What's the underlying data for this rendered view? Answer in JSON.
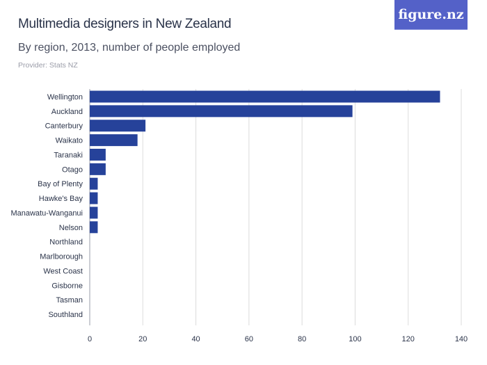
{
  "header": {
    "title": "Multimedia designers in New Zealand",
    "subtitle": "By region, 2013, number of people employed",
    "provider": "Provider: Stats NZ",
    "logo": "figure.nz"
  },
  "colors": {
    "bar": "#26429a",
    "logo_bg": "#5461c8",
    "grid": "#dcdcdc"
  },
  "chart_data": {
    "type": "bar",
    "orientation": "horizontal",
    "categories": [
      "Wellington",
      "Auckland",
      "Canterbury",
      "Waikato",
      "Taranaki",
      "Otago",
      "Bay of Plenty",
      "Hawke's Bay",
      "Manawatu-Wanganui",
      "Nelson",
      "Northland",
      "Marlborough",
      "West Coast",
      "Gisborne",
      "Tasman",
      "Southland"
    ],
    "values": [
      132,
      99,
      21,
      18,
      6,
      6,
      3,
      3,
      3,
      3,
      0,
      0,
      0,
      0,
      0,
      0
    ],
    "xlim": [
      0,
      140
    ],
    "xticks": [
      0,
      20,
      40,
      60,
      80,
      100,
      120,
      140
    ],
    "grid": true,
    "title": "Multimedia designers in New Zealand",
    "subtitle": "By region, 2013, number of people employed",
    "xlabel": "",
    "ylabel": ""
  }
}
